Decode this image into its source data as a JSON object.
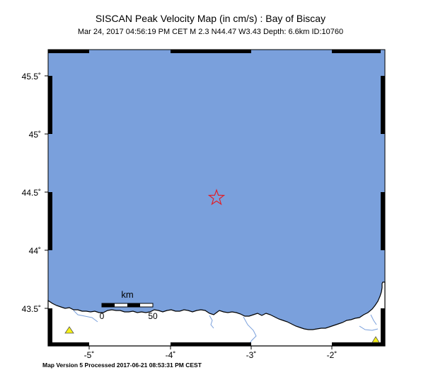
{
  "title": "SISCAN Peak Velocity Map (in cm/s) : Bay of Biscay",
  "subtitle": "Mar 24, 2017 04:56:19 PM CET    M 2.3    N44.47 W3.43    Depth: 6.6km    ID:10760",
  "footer": "Map Version 5 Processed 2017-06-21 08:53:31 PM CEST",
  "map": {
    "lat_labels": [
      "45.5˚",
      "45˚",
      "44.5˚",
      "44˚",
      "43.5˚"
    ],
    "lon_labels": [
      "-5˚",
      "-4˚",
      "-3˚",
      "-2˚"
    ],
    "epicenter": {
      "lat": 44.47,
      "lon": -3.43,
      "symbol": "star-icon"
    },
    "stations": [
      {
        "name": "station-1",
        "symbol": "triangle-icon"
      },
      {
        "name": "station-2",
        "symbol": "triangle-icon"
      }
    ],
    "scale_bar": {
      "unit": "km",
      "start": "0",
      "end": "50"
    },
    "colors": {
      "sea": "#7aa0dc",
      "land": "#ffffff",
      "epicenter": "#e0202a",
      "station": "#f5f014",
      "river": "#7aa0dc"
    }
  }
}
